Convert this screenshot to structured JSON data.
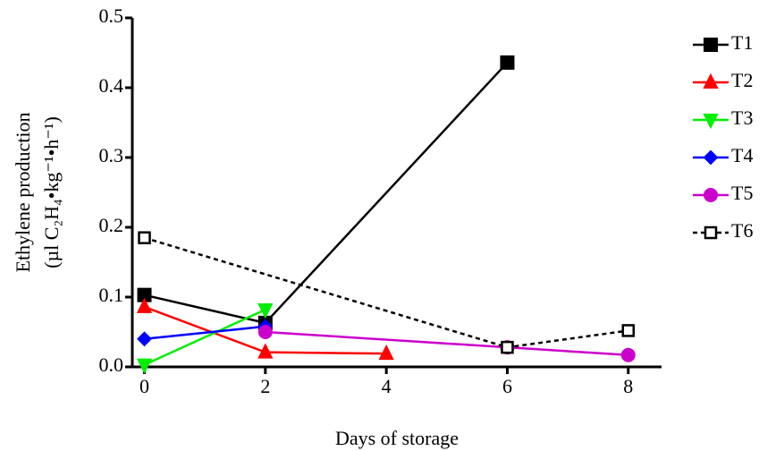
{
  "chart_data": {
    "type": "line",
    "x_label": "Days of storage",
    "y_label": [
      "Ethylene production",
      "(µl C₂H₄•kg⁻¹•h⁻¹)"
    ],
    "xlim": [
      -0.2,
      8.55
    ],
    "xticks": [
      0,
      2,
      4,
      6,
      8
    ],
    "ylim": [
      0,
      0.5
    ],
    "yticks": [
      {
        "value": 0,
        "label": "0.0"
      },
      0.1,
      0.2,
      0.3,
      0.4,
      0.5
    ],
    "series": [
      {
        "name": "T1",
        "color": "#000000",
        "marker": "square",
        "x": [
          0,
          2,
          6
        ],
        "values": [
          0.103,
          0.063,
          0.436
        ]
      },
      {
        "name": "T2",
        "color": "#ff0000",
        "marker": "triangle-up",
        "x": [
          0,
          2,
          4
        ],
        "values": [
          0.086,
          0.021,
          0.019
        ]
      },
      {
        "name": "T3",
        "color": "#00ee00",
        "marker": "triangle-down",
        "x": [
          0,
          2
        ],
        "values": [
          0.003,
          0.082
        ]
      },
      {
        "name": "T4",
        "color": "#0000ff",
        "marker": "diamond",
        "x": [
          0,
          2
        ],
        "values": [
          0.04,
          0.058
        ]
      },
      {
        "name": "T5",
        "color": "#cc00cc",
        "marker": "circle",
        "x": [
          2,
          6,
          8
        ],
        "values": [
          0.05,
          0.028,
          0.017
        ]
      },
      {
        "name": "T6",
        "color": "#000000",
        "marker": "open-square",
        "dashed": true,
        "x": [
          0,
          6,
          8
        ],
        "values": [
          0.185,
          0.028,
          0.052
        ]
      }
    ]
  }
}
